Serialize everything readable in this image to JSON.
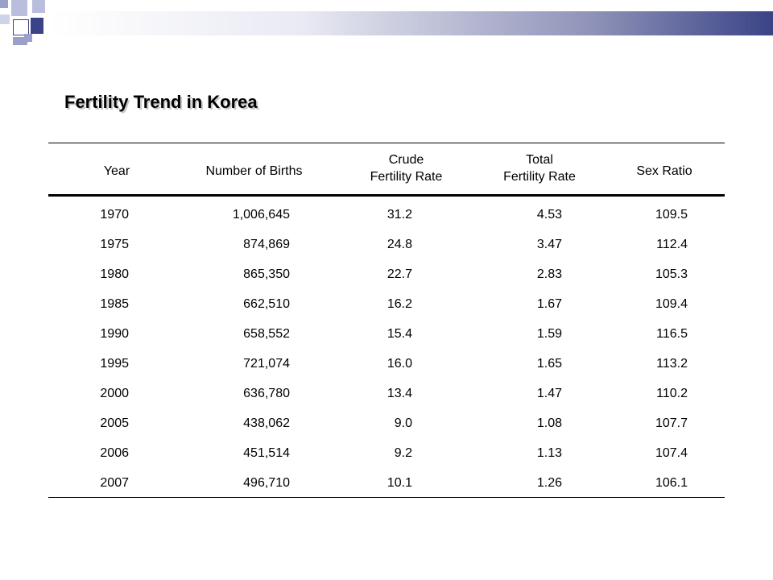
{
  "title": "Fertility Trend in Korea",
  "table": {
    "headers": {
      "year": "Year",
      "births": "Number of Births",
      "crude_line1": "Crude",
      "crude_line2": "Fertility Rate",
      "tfr_line1": "Total",
      "tfr_line2": "Fertility Rate",
      "sex": "Sex Ratio"
    },
    "rows": [
      {
        "year": "1970",
        "births": "1,006,645",
        "crude": "31.2",
        "tfr": "4.53",
        "sex": "109.5"
      },
      {
        "year": "1975",
        "births": "874,869",
        "crude": "24.8",
        "tfr": "3.47",
        "sex": "112.4"
      },
      {
        "year": "1980",
        "births": "865,350",
        "crude": "22.7",
        "tfr": "2.83",
        "sex": "105.3"
      },
      {
        "year": "1985",
        "births": "662,510",
        "crude": "16.2",
        "tfr": "1.67",
        "sex": "109.4"
      },
      {
        "year": "1990",
        "births": "658,552",
        "crude": "15.4",
        "tfr": "1.59",
        "sex": "116.5"
      },
      {
        "year": "1995",
        "births": "721,074",
        "crude": "16.0",
        "tfr": "1.65",
        "sex": "113.2"
      },
      {
        "year": "2000",
        "births": "636,780",
        "crude": "13.4",
        "tfr": "1.47",
        "sex": "110.2"
      },
      {
        "year": "2005",
        "births": "438,062",
        "crude": "9.0",
        "tfr": "1.08",
        "sex": "107.7"
      },
      {
        "year": "2006",
        "births": "451,514",
        "crude": "9.2",
        "tfr": "1.13",
        "sex": "107.4"
      },
      {
        "year": "2007",
        "births": "496,710",
        "crude": "10.1",
        "tfr": "1.26",
        "sex": "106.1"
      }
    ]
  },
  "colors": {
    "accent_dark": "#3a4387",
    "accent_light": "#b9bedc"
  }
}
